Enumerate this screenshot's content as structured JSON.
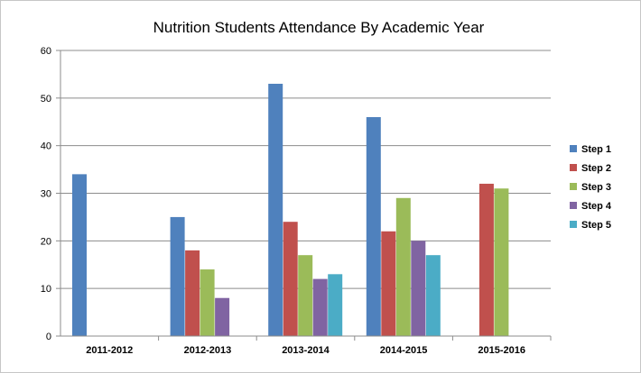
{
  "chart_data": {
    "type": "bar",
    "title": "Nutrition Students Attendance By Academic Year",
    "xlabel": "",
    "ylabel": "",
    "ylim": [
      0,
      60
    ],
    "yticks": [
      0,
      10,
      20,
      30,
      40,
      50,
      60
    ],
    "grid": true,
    "legend_position": "right",
    "categories": [
      "2011-2012",
      "2012-2013",
      "2013-2014",
      "2014-2015",
      "2015-2016"
    ],
    "series": [
      {
        "name": "Step 1",
        "color": "#4F81BD",
        "values": [
          34,
          25,
          53,
          46,
          null
        ]
      },
      {
        "name": "Step 2",
        "color": "#C0504D",
        "values": [
          null,
          18,
          24,
          22,
          32
        ]
      },
      {
        "name": "Step 3",
        "color": "#9BBB59",
        "values": [
          null,
          14,
          17,
          29,
          31
        ]
      },
      {
        "name": "Step 4",
        "color": "#8064A2",
        "values": [
          null,
          8,
          12,
          20,
          null
        ]
      },
      {
        "name": "Step 5",
        "color": "#4BACC6",
        "values": [
          null,
          null,
          13,
          17,
          null
        ]
      }
    ]
  }
}
